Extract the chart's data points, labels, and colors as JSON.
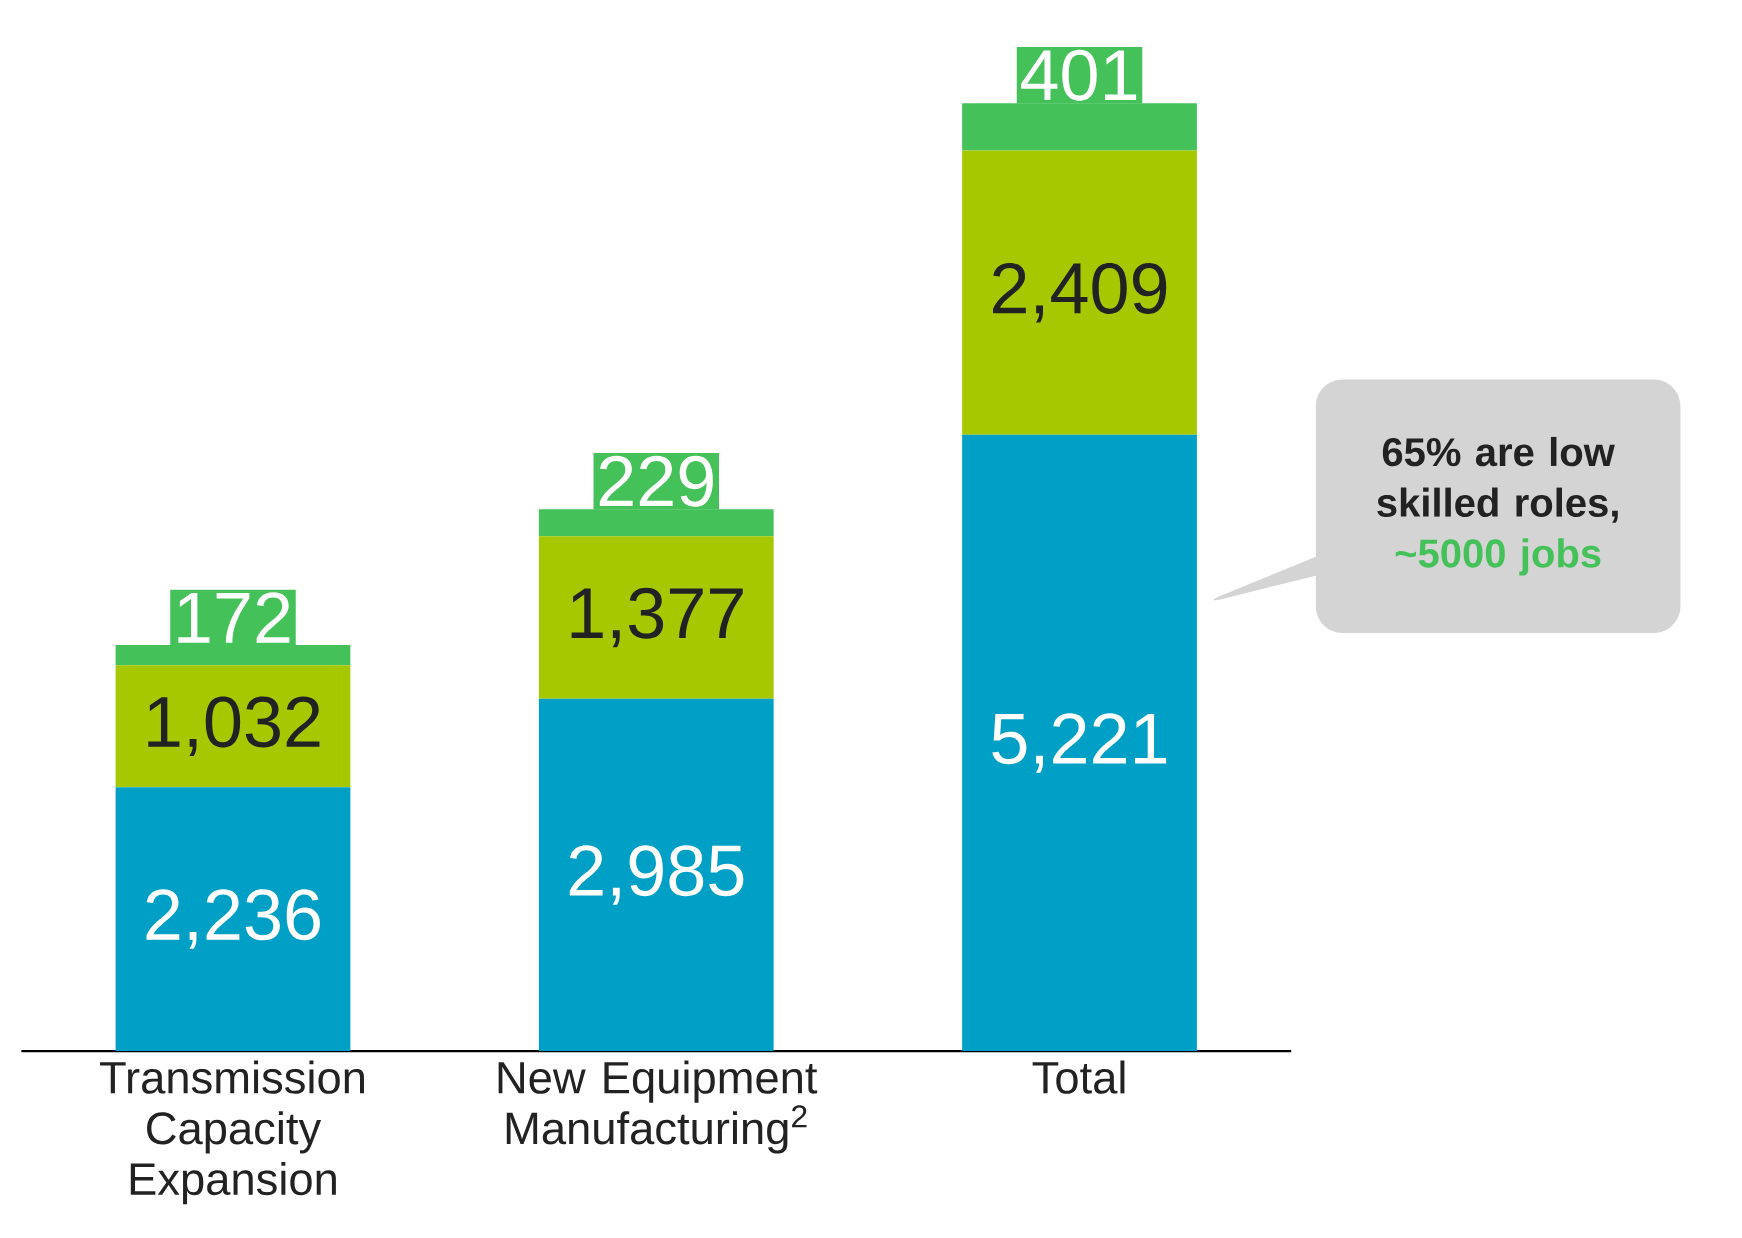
{
  "chart_data": {
    "type": "bar",
    "stacked": true,
    "categories": [
      "Transmission Capacity Expansion",
      "New Equipment Manufacturing$^{2}$",
      "Total"
    ],
    "series": [
      {
        "color": "#00a0c6",
        "values": [
          2236,
          2985,
          5221
        ],
        "value_labels": [
          "2,236",
          "2,985",
          "5,221"
        ]
      },
      {
        "color": "#a5c800",
        "values": [
          1032,
          1377,
          2409
        ],
        "value_labels": [
          "1,032",
          "1,377",
          "2,409"
        ]
      },
      {
        "color": "#45c15a",
        "values": [
          172,
          229,
          401
        ],
        "value_labels": [
          "172",
          "229",
          "401"
        ]
      }
    ],
    "annotations": [
      "65% are low skilled roles,",
      "~5000  jobs"
    ]
  }
}
